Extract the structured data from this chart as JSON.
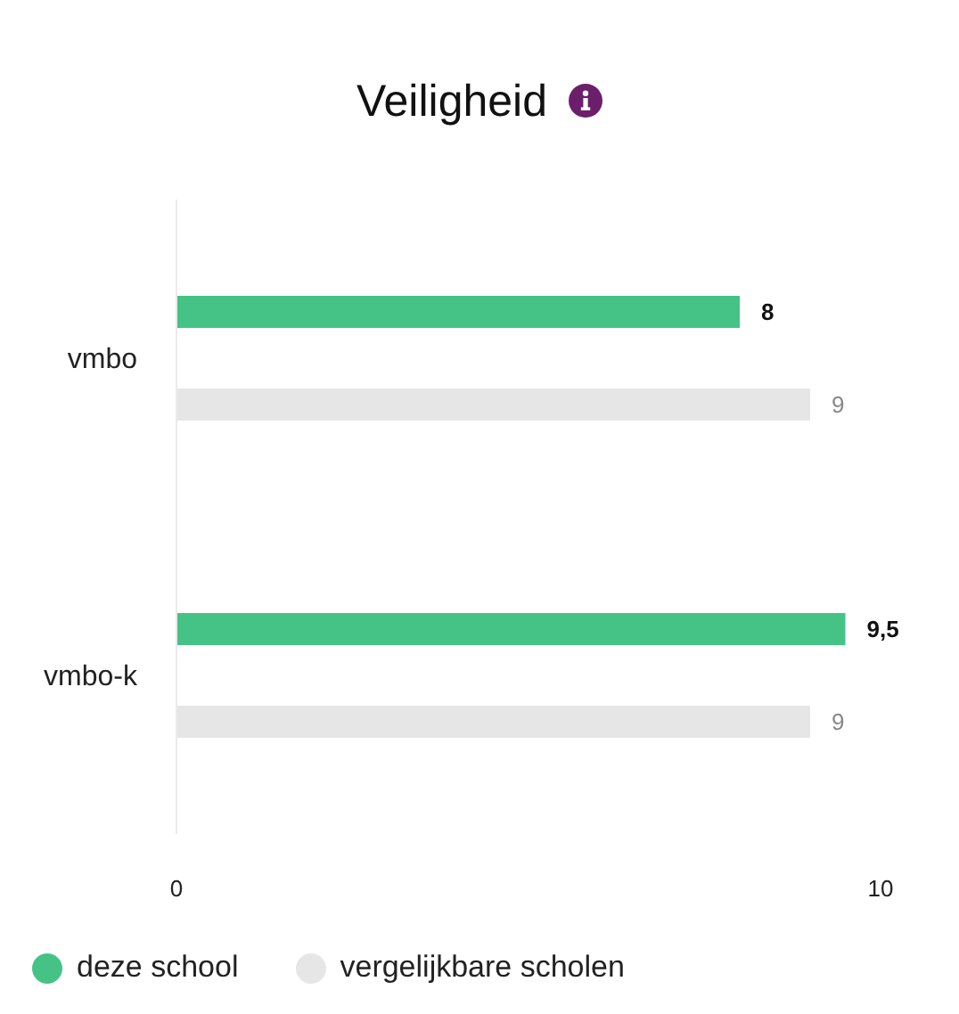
{
  "chart_data": {
    "type": "bar",
    "orientation": "horizontal",
    "title": "Veiligheid",
    "categories": [
      "vmbo",
      "vmbo-k"
    ],
    "series": [
      {
        "name": "deze school",
        "color": "#45c386",
        "values": [
          8,
          9.5
        ],
        "value_labels": [
          "8",
          "9,5"
        ]
      },
      {
        "name": "vergelijkbare scholen",
        "color": "#e6e6e6",
        "values": [
          9,
          9
        ],
        "value_labels": [
          "9",
          "9"
        ]
      }
    ],
    "xlim": [
      0,
      10
    ],
    "xticks": [
      0,
      10
    ],
    "legend": "bottom left"
  }
}
